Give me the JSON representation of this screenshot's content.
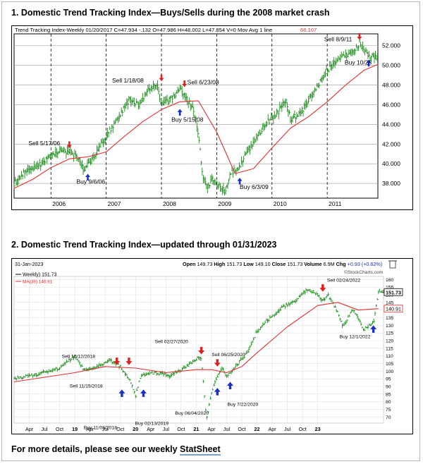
{
  "section1": {
    "heading": "1. Domestic Trend Tracking Index—Buys/Sells during the 2008 market crash"
  },
  "section2": {
    "heading": "2. Domestic Trend Tracking Index—updated through 01/31/2023"
  },
  "footer": {
    "text": "For more details, please see our weekly ",
    "link": "StatSheet"
  },
  "chart_data": [
    {
      "type": "line",
      "title": "",
      "header_line": "Trend Tracking Index-Weekly   01/20/2017   C=47.934  -.132  O=47.986  H=48.002  L=47.854  V=0   Mov Avg 1 line",
      "mov_avg_value": "66.107",
      "x_range": [
        "2005-05",
        "2011-12"
      ],
      "ylim": [
        36.5,
        53.2
      ],
      "y_ticks": [
        "38.000",
        "40.000",
        "42.000",
        "44.000",
        "46.000",
        "48.000",
        "50.000",
        "52.000"
      ],
      "x_ticks": [
        "2006",
        "2007",
        "2008",
        "2009",
        "2010",
        "2011"
      ],
      "grid": true,
      "series": [
        {
          "kind": "price",
          "x": [
            "2005-05",
            "2005-07",
            "2005-09",
            "2005-11",
            "2006-01",
            "2006-03",
            "2006-05",
            "2006-07",
            "2006-08",
            "2006-10",
            "2006-12",
            "2007-02",
            "2007-04",
            "2007-06",
            "2007-08",
            "2007-10",
            "2007-12",
            "2008-01",
            "2008-03",
            "2008-05",
            "2008-06",
            "2008-08",
            "2008-09",
            "2008-10",
            "2008-11",
            "2008-12",
            "2009-01",
            "2009-03",
            "2009-04",
            "2009-06",
            "2009-08",
            "2009-10",
            "2009-12",
            "2010-02",
            "2010-04",
            "2010-05",
            "2010-07",
            "2010-09",
            "2010-11",
            "2011-01",
            "2011-03",
            "2011-05",
            "2011-07",
            "2011-08",
            "2011-10",
            "2011-12"
          ],
          "values": [
            38.0,
            39.0,
            39.5,
            40.0,
            41.0,
            41.3,
            41.2,
            40.5,
            39.4,
            40.5,
            42.0,
            43.5,
            45.0,
            46.5,
            46.0,
            47.5,
            48.1,
            46.0,
            46.5,
            47.5,
            47.0,
            45.5,
            43.0,
            38.5,
            37.5,
            38.5,
            37.8,
            37.2,
            39.0,
            39.8,
            41.5,
            43.0,
            44.2,
            45.0,
            46.5,
            44.5,
            45.0,
            46.5,
            48.0,
            49.5,
            50.5,
            51.0,
            51.5,
            52.3,
            51.0,
            50.8
          ]
        },
        {
          "kind": "moving_average",
          "x": [
            "2005-05",
            "2005-09",
            "2006-01",
            "2006-05",
            "2006-09",
            "2007-01",
            "2007-05",
            "2007-09",
            "2008-01",
            "2008-05",
            "2008-09",
            "2009-01",
            "2009-05",
            "2009-09",
            "2010-01",
            "2010-05",
            "2010-09",
            "2011-01",
            "2011-05",
            "2011-09",
            "2011-12"
          ],
          "values": [
            37.5,
            38.4,
            39.6,
            40.5,
            40.7,
            41.2,
            42.8,
            44.3,
            45.5,
            46.3,
            46.4,
            43.2,
            39.0,
            39.5,
            41.6,
            43.6,
            44.8,
            46.3,
            48.0,
            49.5,
            50.1
          ]
        }
      ],
      "signals": [
        {
          "type": "sell",
          "label": "Sell 5/17/06",
          "x": "2006-05",
          "y": 41.3
        },
        {
          "type": "buy",
          "label": "Buy 9/6/06",
          "x": "2006-09",
          "y": 39.4
        },
        {
          "type": "sell",
          "label": "Sell 1/18/08",
          "x": "2008-01",
          "y": 48.1
        },
        {
          "type": "buy",
          "label": "Buy 5/15/08",
          "x": "2008-05",
          "y": 46.0
        },
        {
          "type": "sell",
          "label": "Sell 6/23/08",
          "x": "2008-06",
          "y": 47.5
        },
        {
          "type": "buy",
          "label": "Buy 6/3/09",
          "x": "2009-06",
          "y": 39.0
        },
        {
          "type": "sell",
          "label": "Sell 8/9/11",
          "x": "2011-08",
          "y": 52.3
        },
        {
          "type": "buy",
          "label": "Buy 10/25",
          "x": "2011-10",
          "y": 51.0
        }
      ]
    },
    {
      "type": "line",
      "title": "",
      "date_label": "31-Jan-2023",
      "ohlc": {
        "open": "149.73",
        "high": "151.73",
        "low": "149.10",
        "close": "151.73",
        "volume": "6.9M",
        "change": "+0.93 (+0.62%)"
      },
      "ohlc_labels": {
        "open": "Open",
        "high": "High",
        "low": "Low",
        "close": "Close",
        "volume": "Volume",
        "change": "Chg"
      },
      "legend": [
        {
          "label": "Weekly) 151.73",
          "color": "#000000"
        },
        {
          "label": "MA(39) 140.91",
          "color": "#e03030"
        }
      ],
      "watermark": "©StockCharts.com",
      "last_price_label": "151.73",
      "last_ma_label": "140.91",
      "x_range": [
        "2017-01",
        "2023-02"
      ],
      "ylim": [
        66,
        162
      ],
      "y_ticks": [
        "70",
        "75",
        "80",
        "85",
        "90",
        "95",
        "100",
        "105",
        "110",
        "115",
        "120",
        "125",
        "130",
        "135",
        "140",
        "145",
        "150",
        "155",
        "160"
      ],
      "x_ticks": [
        "Apr",
        "Jul",
        "Oct",
        "19",
        "Apr",
        "Jul",
        "Oct",
        "20",
        "Apr",
        "Jul",
        "Oct",
        "21",
        "Apr",
        "Jul",
        "Oct",
        "22",
        "Apr",
        "Jul",
        "Oct",
        "23"
      ],
      "grid": true,
      "series": [
        {
          "kind": "price",
          "x": [
            "2017-01",
            "2017-04",
            "2017-07",
            "2017-10",
            "2018-01",
            "2018-03",
            "2018-06",
            "2018-08",
            "2018-10",
            "2018-12",
            "2019-01",
            "2019-02",
            "2019-05",
            "2019-08",
            "2019-11",
            "2020-01",
            "2020-02",
            "2020-03",
            "2020-04",
            "2020-05",
            "2020-06",
            "2020-07",
            "2020-09",
            "2020-11",
            "2021-01",
            "2021-03",
            "2021-06",
            "2021-09",
            "2021-11",
            "2022-01",
            "2022-02",
            "2022-03",
            "2022-05",
            "2022-06",
            "2022-08",
            "2022-10",
            "2022-12",
            "2023-01"
          ],
          "values": [
            95,
            97,
            99,
            102,
            110,
            100,
            104,
            107,
            103,
            93,
            84,
            97,
            99,
            97,
            103,
            108,
            109,
            68,
            86,
            96,
            102,
            97,
            104,
            112,
            126,
            133,
            142,
            147,
            154,
            150,
            146,
            150,
            138,
            129,
            141,
            127,
            132,
            151.7
          ]
        },
        {
          "kind": "moving_average",
          "name": "MA(39)",
          "x": [
            "2017-01",
            "2017-07",
            "2018-01",
            "2018-07",
            "2019-01",
            "2019-07",
            "2020-01",
            "2020-04",
            "2020-07",
            "2020-10",
            "2021-01",
            "2021-07",
            "2022-01",
            "2022-05",
            "2022-09",
            "2023-01"
          ],
          "values": [
            93,
            96,
            99,
            103,
            102,
            99,
            101,
            101,
            99,
            103,
            112,
            129,
            143,
            145,
            140,
            140.9
          ]
        }
      ],
      "signals": [
        {
          "type": "sell",
          "label": "Sell 10/12/2018",
          "x": "2018-10",
          "y": 104
        },
        {
          "type": "sell",
          "label": "Sell 11/15/2018",
          "x": "2018-11",
          "y": 104
        },
        {
          "type": "buy",
          "label": "Buy 11/08/2018",
          "x": "2018-11",
          "y": 88
        },
        {
          "type": "buy",
          "label": "Buy 02/13/2019",
          "x": "2019-02",
          "y": 88
        },
        {
          "type": "sell",
          "label": "Sell 02/27/2020",
          "x": "2020-02",
          "y": 111
        },
        {
          "type": "sell",
          "label": "Sell 06/25/2020",
          "x": "2020-06",
          "y": 103
        },
        {
          "type": "buy",
          "label": "Buy 06/04/2020",
          "x": "2020-06",
          "y": 89
        },
        {
          "type": "buy",
          "label": "Buy 7/22/2020",
          "x": "2020-07",
          "y": 93
        },
        {
          "type": "sell",
          "label": "Sell 02/24/2022",
          "x": "2022-02",
          "y": 152
        },
        {
          "type": "buy",
          "label": "Buy 12/1/2022",
          "x": "2022-12",
          "y": 130
        }
      ]
    }
  ]
}
